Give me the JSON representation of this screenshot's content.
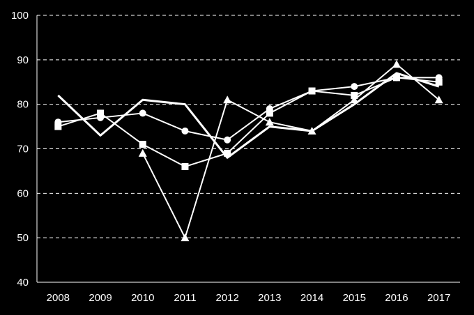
{
  "chart_data": {
    "type": "line",
    "categories": [
      "2008",
      "2009",
      "2010",
      "2011",
      "2012",
      "2013",
      "2014",
      "2015",
      "2016",
      "2017"
    ],
    "ylim": [
      40,
      100
    ],
    "yticks": [
      40,
      50,
      60,
      70,
      80,
      90,
      100
    ],
    "grid": "horizontal dashed",
    "legend": "none",
    "colors": {
      "background": "#000000",
      "line": "#ffffff",
      "grid": "#ffffff"
    },
    "series": [
      {
        "marker": "none",
        "values": [
          82,
          73,
          81,
          80,
          68,
          75,
          74,
          80,
          87,
          84
        ]
      },
      {
        "marker": "circle",
        "values": [
          76,
          77,
          78,
          74,
          72,
          79,
          83,
          84,
          86,
          86
        ]
      },
      {
        "marker": "square",
        "values": [
          75,
          78,
          71,
          66,
          69,
          78,
          83,
          82,
          86,
          85
        ]
      },
      {
        "marker": "triangle",
        "values": [
          null,
          null,
          69,
          50,
          81,
          76,
          74,
          81,
          89,
          81
        ]
      }
    ]
  }
}
